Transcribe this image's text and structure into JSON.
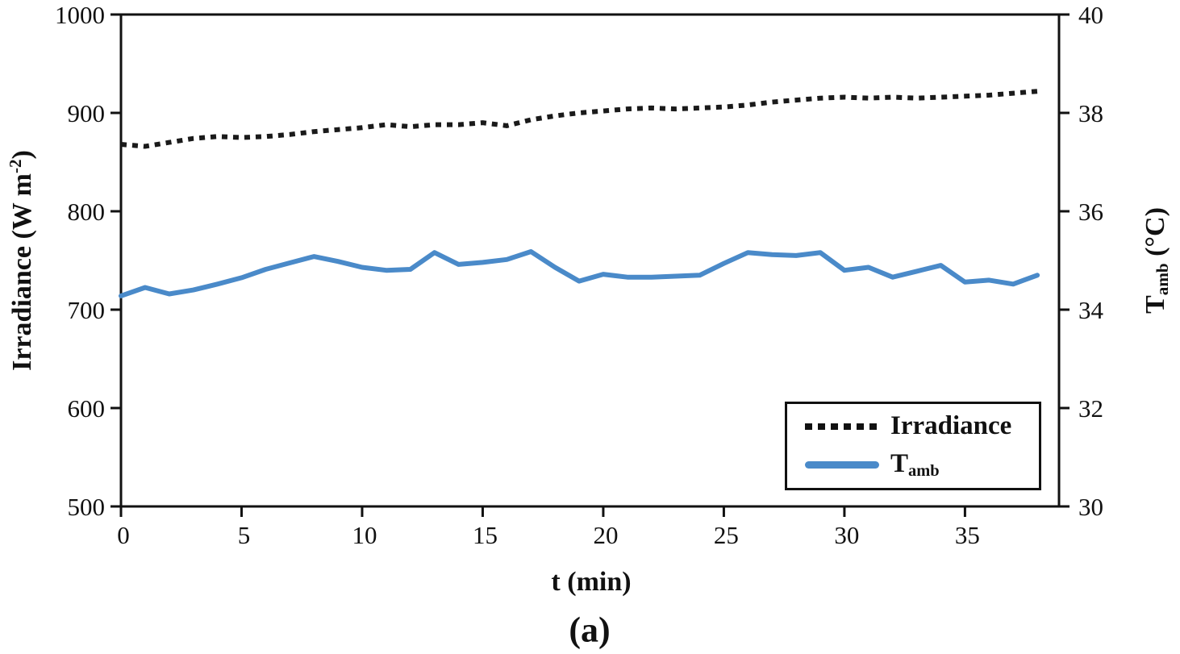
{
  "figure_caption": "(a)",
  "colors": {
    "axis": "#111111",
    "irradiance_line": "#1a1a1a",
    "tamb_line": "#4a8ac9",
    "background": "#ffffff"
  },
  "chart_data": {
    "type": "line",
    "title": "",
    "xlabel": "t (min)",
    "x_axis": {
      "ticks": [
        0,
        5,
        10,
        15,
        20,
        25,
        30,
        35
      ],
      "range": [
        0,
        38.9
      ]
    },
    "left_y_axis": {
      "label_prefix": "Irradiance (W m",
      "label_sup": "-2",
      "label_suffix": ")",
      "label_plain": "Irradiance (W m-2)",
      "ticks": [
        500,
        600,
        700,
        800,
        900,
        1000
      ],
      "range": [
        500,
        1000
      ]
    },
    "right_y_axis": {
      "label_main": "T",
      "label_sub": "amb",
      "label_unit": " (°C)",
      "label_plain": "Tamb (°C)",
      "ticks": [
        30,
        32,
        34,
        36,
        38,
        40
      ],
      "range": [
        30,
        40
      ]
    },
    "x": [
      0,
      1,
      2,
      3,
      4,
      5,
      6,
      7,
      8,
      9,
      10,
      11,
      12,
      13,
      14,
      15,
      16,
      17,
      18,
      19,
      20,
      21,
      22,
      23,
      24,
      25,
      26,
      27,
      28,
      29,
      30,
      31,
      32,
      33,
      34,
      35,
      36,
      37,
      38
    ],
    "series": [
      {
        "name": "Irradiance",
        "axis": "left",
        "line_style": "dotted",
        "color": "#1a1a1a",
        "values": [
          868,
          866,
          870,
          874,
          876,
          875,
          876,
          878,
          881,
          883,
          885,
          888,
          886,
          888,
          888,
          890,
          887,
          893,
          897,
          900,
          902,
          904,
          905,
          904,
          905,
          906,
          908,
          911,
          913,
          915,
          916,
          915,
          916,
          915,
          916,
          917,
          918,
          920,
          922
        ]
      },
      {
        "name": "Tamb",
        "axis": "right",
        "line_style": "solid",
        "color": "#4a8ac9",
        "values": [
          34.28,
          34.45,
          34.32,
          34.4,
          34.52,
          34.65,
          34.82,
          34.95,
          35.08,
          34.98,
          34.86,
          34.8,
          34.82,
          35.16,
          34.92,
          34.96,
          35.02,
          35.18,
          34.86,
          34.58,
          34.72,
          34.66,
          34.66,
          34.68,
          34.7,
          34.94,
          35.16,
          35.12,
          35.1,
          35.16,
          34.8,
          34.86,
          34.66,
          34.78,
          34.9,
          34.56,
          34.6,
          34.52,
          34.7
        ]
      }
    ],
    "legend": {
      "position": "inside-bottom-right",
      "entries": [
        {
          "label": "Irradiance"
        },
        {
          "label_main": "T",
          "label_sub": "amb"
        }
      ]
    },
    "grid": "off"
  }
}
